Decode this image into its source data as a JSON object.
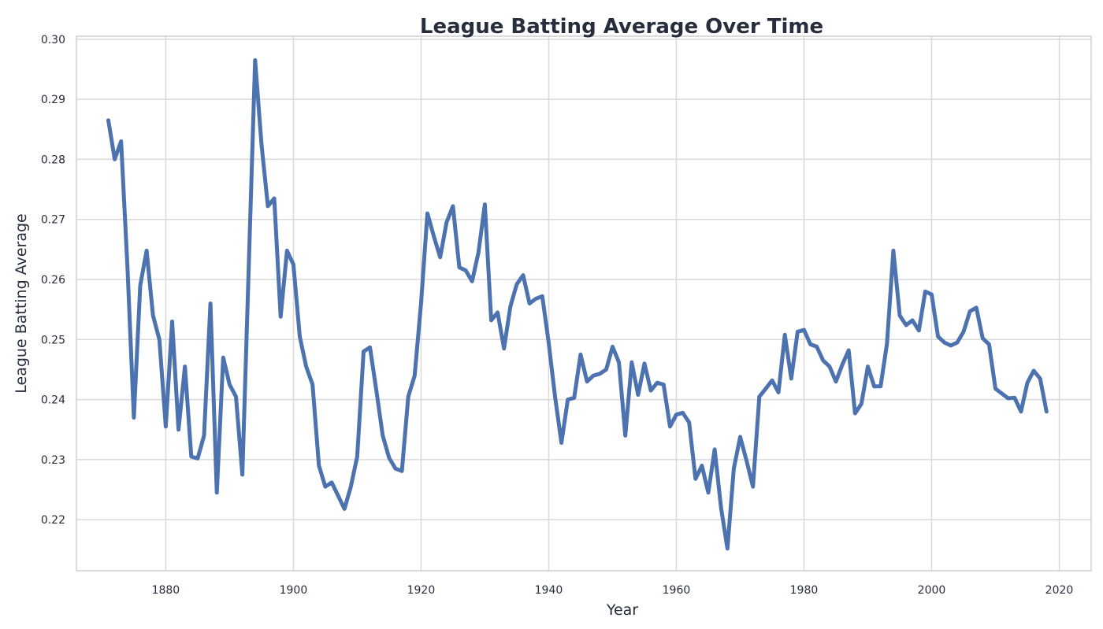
{
  "chart_data": {
    "type": "line",
    "title": "League Batting Average Over Time",
    "xlabel": "Year",
    "ylabel": "League Batting Average",
    "xlim": [
      1866,
      2025
    ],
    "ylim": [
      0.2115,
      0.3005
    ],
    "xticks": [
      1880,
      1900,
      1920,
      1940,
      1960,
      1980,
      2000,
      2020
    ],
    "xtick_labels": [
      "1880",
      "1900",
      "1920",
      "1940",
      "1960",
      "1980",
      "2000",
      "2020"
    ],
    "yticks": [
      0.22,
      0.23,
      0.24,
      0.25,
      0.26,
      0.27,
      0.28,
      0.29,
      0.3
    ],
    "ytick_labels": [
      "0.22",
      "0.23",
      "0.24",
      "0.25",
      "0.26",
      "0.27",
      "0.28",
      "0.29",
      "0.30"
    ],
    "grid": true,
    "legend": "none",
    "line_color": "#4c72b0",
    "series": [
      {
        "x": [
          1871,
          1872,
          1873,
          1874,
          1875,
          1876,
          1877,
          1878,
          1879,
          1880,
          1881,
          1882,
          1883,
          1884,
          1885,
          1886,
          1887,
          1888,
          1889,
          1890,
          1891,
          1892,
          1893,
          1894,
          1895,
          1896,
          1897,
          1898,
          1899,
          1900,
          1901,
          1902,
          1903,
          1904,
          1905,
          1906,
          1907,
          1908,
          1909,
          1910,
          1911,
          1912,
          1913,
          1914,
          1915,
          1916,
          1917,
          1918,
          1919,
          1920,
          1921,
          1922,
          1923,
          1924,
          1925,
          1926,
          1927,
          1928,
          1929,
          1930,
          1931,
          1932,
          1933,
          1934,
          1935,
          1936,
          1937,
          1938,
          1939,
          1940,
          1941,
          1942,
          1943,
          1944,
          1945,
          1946,
          1947,
          1948,
          1949,
          1950,
          1951,
          1952,
          1953,
          1954,
          1955,
          1956,
          1957,
          1958,
          1959,
          1960,
          1961,
          1962,
          1963,
          1964,
          1965,
          1966,
          1967,
          1968,
          1969,
          1970,
          1971,
          1972,
          1973,
          1974,
          1975,
          1976,
          1977,
          1978,
          1979,
          1980,
          1981,
          1982,
          1983,
          1984,
          1985,
          1986,
          1987,
          1988,
          1989,
          1990,
          1991,
          1992,
          1993,
          1994,
          1995,
          1996,
          1997,
          1998,
          1999,
          2000,
          2001,
          2002,
          2003,
          2004,
          2005,
          2006,
          2007,
          2008,
          2009,
          2010,
          2011,
          2012,
          2013,
          2014,
          2015,
          2016,
          2017,
          2018
        ],
        "values": [
          0.2865,
          0.28,
          0.283,
          0.262,
          0.237,
          0.259,
          0.2648,
          0.254,
          0.25,
          0.2355,
          0.253,
          0.235,
          0.2455,
          0.2305,
          0.2302,
          0.234,
          0.256,
          0.2245,
          0.247,
          0.2425,
          0.2405,
          0.2275,
          0.262,
          0.2965,
          0.2825,
          0.2722,
          0.2735,
          0.2538,
          0.2648,
          0.2625,
          0.2505,
          0.2455,
          0.2425,
          0.229,
          0.2255,
          0.2262,
          0.224,
          0.2218,
          0.2255,
          0.2305,
          0.248,
          0.2487,
          0.2415,
          0.234,
          0.2303,
          0.2285,
          0.2281,
          0.2405,
          0.244,
          0.256,
          0.271,
          0.2672,
          0.2637,
          0.2695,
          0.2722,
          0.262,
          0.2615,
          0.2597,
          0.2645,
          0.2725,
          0.2532,
          0.2545,
          0.2485,
          0.2555,
          0.2592,
          0.2607,
          0.256,
          0.2568,
          0.2572,
          0.2495,
          0.2405,
          0.2328,
          0.24,
          0.2403,
          0.2475,
          0.243,
          0.244,
          0.2443,
          0.245,
          0.2488,
          0.2462,
          0.234,
          0.2462,
          0.2408,
          0.246,
          0.2415,
          0.2428,
          0.2425,
          0.2355,
          0.2375,
          0.2378,
          0.2362,
          0.2268,
          0.229,
          0.2245,
          0.2317,
          0.222,
          0.2152,
          0.2285,
          0.2338,
          0.2298,
          0.2255,
          0.2405,
          0.2418,
          0.2432,
          0.2412,
          0.2508,
          0.2435,
          0.2513,
          0.2516,
          0.2492,
          0.2488,
          0.2465,
          0.2455,
          0.243,
          0.2458,
          0.2482,
          0.2377,
          0.2393,
          0.2455,
          0.2422,
          0.2422,
          0.2493,
          0.2648,
          0.254,
          0.2524,
          0.2532,
          0.2515,
          0.258,
          0.2575,
          0.2505,
          0.2495,
          0.249,
          0.2495,
          0.2513,
          0.2547,
          0.2553,
          0.2502,
          0.2492,
          0.2418,
          0.241,
          0.2402,
          0.2403,
          0.238,
          0.2428,
          0.2448,
          0.2435,
          0.238
        ]
      }
    ]
  }
}
